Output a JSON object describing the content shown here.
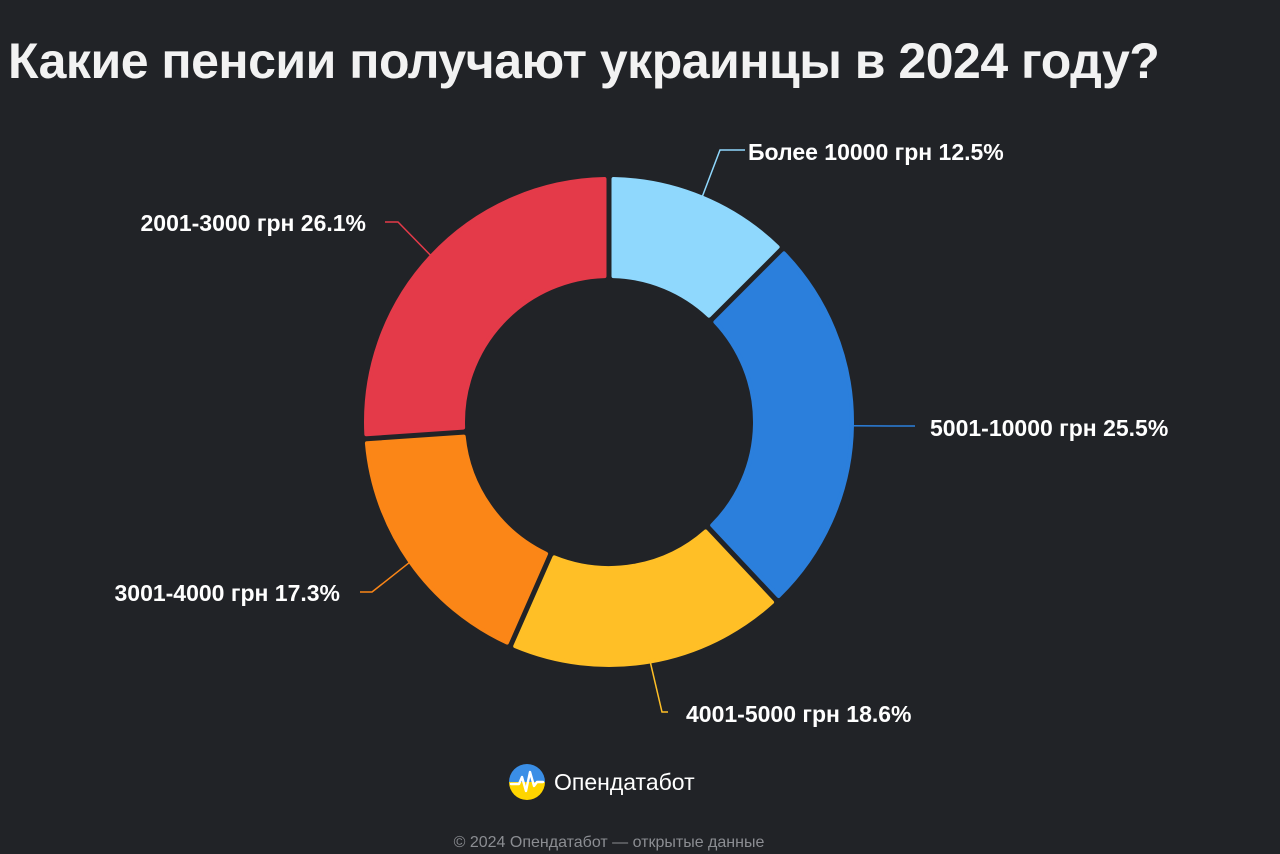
{
  "chart_data": {
    "type": "pie",
    "title": "Какие пенсии получают украинцы в 2024 году?",
    "donut": true,
    "slices": [
      {
        "label": "Более 10000 грн 12.5%",
        "value": 12.5,
        "color": "#8fd8fd"
      },
      {
        "label": "5001-10000 грн 25.5%",
        "value": 25.5,
        "color": "#2b7fdc"
      },
      {
        "label": "4001-5000 грн 18.6%",
        "value": 18.6,
        "color": "#ffbf26"
      },
      {
        "label": "3001-4000 грн 17.3%",
        "value": 17.3,
        "color": "#fb8617"
      },
      {
        "label": "2001-3000 грн 26.1%",
        "value": 26.1,
        "color": "#e43a49"
      }
    ]
  },
  "brand": {
    "name": "Опендатабот"
  },
  "footer": {
    "text": "© 2024 Опендатабот — открытые данные"
  }
}
